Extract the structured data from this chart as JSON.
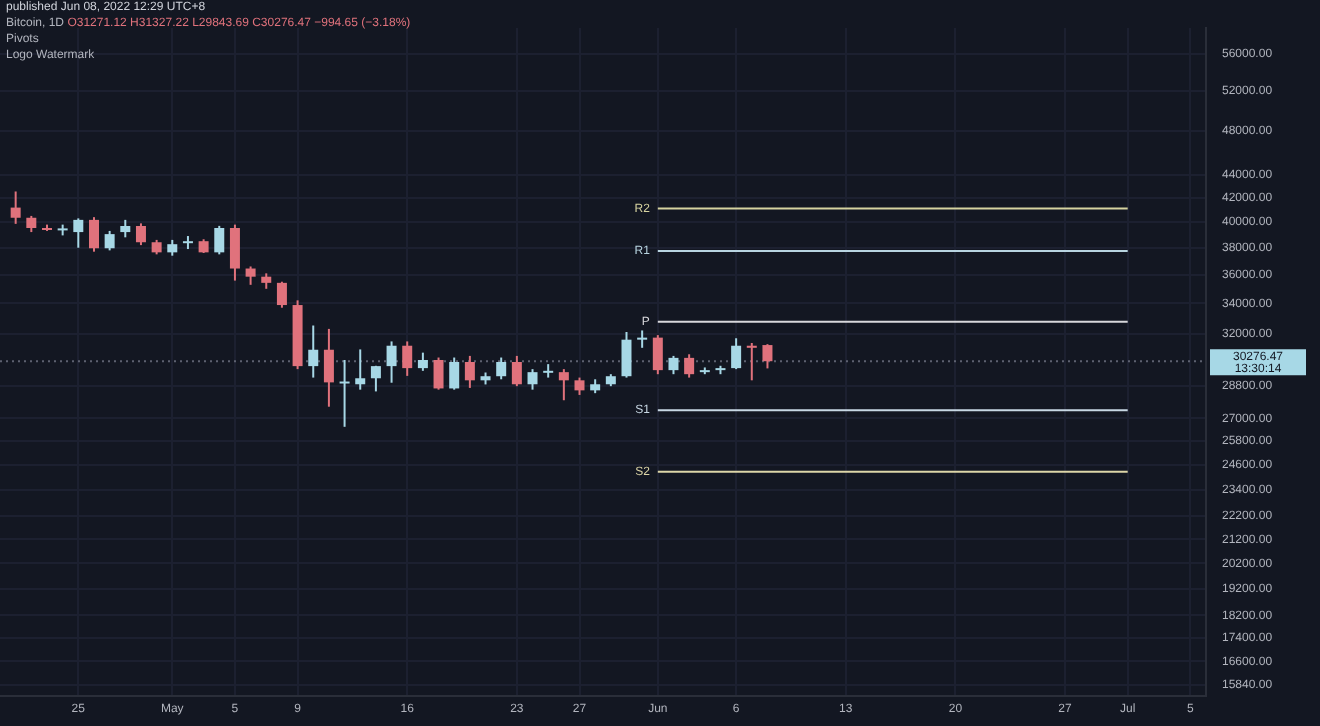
{
  "chart_data": {
    "type": "candlestick",
    "title": "Bitcoin, 1D",
    "annotations": [
      "published Jun 08, 2022 12:29 UTC+8",
      "O31271.12 H31327.22 L29843.69 C30276.47 −994.65 (−3.18%)",
      "Pivots",
      "Logo Watermark",
      "13:30:14"
    ],
    "x": [
      "2022-04-21",
      "2022-04-22",
      "2022-04-23",
      "2022-04-24",
      "2022-04-25",
      "2022-04-26",
      "2022-04-27",
      "2022-04-28",
      "2022-04-29",
      "2022-04-30",
      "2022-05-01",
      "2022-05-02",
      "2022-05-03",
      "2022-05-04",
      "2022-05-05",
      "2022-05-06",
      "2022-05-07",
      "2022-05-08",
      "2022-05-09",
      "2022-05-10",
      "2022-05-11",
      "2022-05-12",
      "2022-05-13",
      "2022-05-14",
      "2022-05-15",
      "2022-05-16",
      "2022-05-17",
      "2022-05-18",
      "2022-05-19",
      "2022-05-20",
      "2022-05-21",
      "2022-05-22",
      "2022-05-23",
      "2022-05-24",
      "2022-05-25",
      "2022-05-26",
      "2022-05-27",
      "2022-05-28",
      "2022-05-29",
      "2022-05-30",
      "2022-05-31",
      "2022-06-01",
      "2022-06-02",
      "2022-06-03",
      "2022-06-04",
      "2022-06-05",
      "2022-06-06",
      "2022-06-07",
      "2022-06-08"
    ],
    "ohlc": [
      [
        41180,
        42530,
        39860,
        40350
      ],
      [
        40350,
        40500,
        39210,
        39530
      ],
      [
        39530,
        39800,
        39300,
        39450
      ],
      [
        39450,
        39800,
        38950,
        39500
      ],
      [
        39210,
        40300,
        38000,
        40180
      ],
      [
        40180,
        40400,
        37700,
        37960
      ],
      [
        37960,
        39300,
        37800,
        39050
      ],
      [
        39210,
        40180,
        38800,
        39690
      ],
      [
        39690,
        39900,
        38200,
        38420
      ],
      [
        38420,
        38600,
        37500,
        37650
      ],
      [
        37650,
        38600,
        37400,
        38270
      ],
      [
        38420,
        38900,
        37900,
        38500
      ],
      [
        38500,
        38650,
        37600,
        37650
      ],
      [
        37650,
        39700,
        37500,
        39530
      ],
      [
        39530,
        39800,
        35580,
        36450
      ],
      [
        36450,
        36600,
        35280,
        35860
      ],
      [
        35860,
        36100,
        35000,
        35420
      ],
      [
        35420,
        35500,
        33700,
        33880
      ],
      [
        33880,
        34200,
        29800,
        29980
      ],
      [
        29980,
        32520,
        29300,
        30980
      ],
      [
        30980,
        32300,
        27640,
        29020
      ],
      [
        29020,
        30350,
        26550,
        29070
      ],
      [
        28910,
        31000,
        28600,
        29260
      ],
      [
        29260,
        30000,
        28500,
        29980
      ],
      [
        29980,
        31500,
        29000,
        31230
      ],
      [
        31230,
        31500,
        29400,
        29860
      ],
      [
        29860,
        30800,
        29700,
        30350
      ],
      [
        30350,
        30500,
        28600,
        28670
      ],
      [
        28670,
        30500,
        28600,
        30230
      ],
      [
        30230,
        30600,
        28700,
        29140
      ],
      [
        29140,
        29600,
        28900,
        29380
      ],
      [
        29380,
        30500,
        29200,
        30230
      ],
      [
        30230,
        30600,
        28800,
        28910
      ],
      [
        28910,
        29800,
        28600,
        29620
      ],
      [
        29620,
        30100,
        29300,
        29700
      ],
      [
        29620,
        29800,
        28000,
        29140
      ],
      [
        29140,
        29300,
        28300,
        28560
      ],
      [
        28560,
        29200,
        28400,
        28910
      ],
      [
        28910,
        29500,
        28800,
        29380
      ],
      [
        29380,
        32100,
        29300,
        31610
      ],
      [
        31610,
        32200,
        31100,
        31740
      ],
      [
        31740,
        31900,
        29500,
        29740
      ],
      [
        29740,
        30600,
        29500,
        30480
      ],
      [
        30480,
        30700,
        29300,
        29500
      ],
      [
        29620,
        29900,
        29500,
        29740
      ],
      [
        29740,
        30000,
        29500,
        29860
      ],
      [
        29860,
        31700,
        29800,
        31230
      ],
      [
        31230,
        31400,
        29140,
        31100
      ],
      [
        31271.12,
        31327.22,
        29843.69,
        30276.47
      ]
    ],
    "colors": [
      "#e0727c",
      "#e0727c",
      "#e0727c",
      "#a7d8e6",
      "#a7d8e6",
      "#e0727c",
      "#a7d8e6",
      "#a7d8e6",
      "#e0727c",
      "#e0727c",
      "#a7d8e6",
      "#a7d8e6",
      "#e0727c",
      "#a7d8e6",
      "#e0727c",
      "#e0727c",
      "#e0727c",
      "#e0727c",
      "#e0727c",
      "#a7d8e6",
      "#e0727c",
      "#a7d8e6",
      "#a7d8e6",
      "#a7d8e6",
      "#a7d8e6",
      "#e0727c",
      "#a7d8e6",
      "#e0727c",
      "#a7d8e6",
      "#e0727c",
      "#a7d8e6",
      "#a7d8e6",
      "#e0727c",
      "#a7d8e6",
      "#a7d8e6",
      "#e0727c",
      "#e0727c",
      "#a7d8e6",
      "#a7d8e6",
      "#a7d8e6",
      "#a7d8e6",
      "#e0727c",
      "#a7d8e6",
      "#e0727c",
      "#a7d8e6",
      "#a7d8e6",
      "#a7d8e6",
      "#e0727c",
      "#e0727c"
    ],
    "series": [
      {
        "type": "line",
        "name": "R2",
        "color": "#d6d3a0",
        "x": [
          "2022-06-01",
          "2022-07-01"
        ],
        "values": [
          41100,
          41100
        ]
      },
      {
        "type": "line",
        "name": "R1",
        "color": "#b8d4e0",
        "x": [
          "2022-06-01",
          "2022-07-01"
        ],
        "values": [
          37760,
          37760
        ]
      },
      {
        "type": "line",
        "name": "P",
        "color": "#d8d8dc",
        "x": [
          "2022-06-01",
          "2022-07-01"
        ],
        "values": [
          32770,
          32770
        ]
      },
      {
        "type": "line",
        "name": "S1",
        "color": "#c8d8e4",
        "x": [
          "2022-06-01",
          "2022-07-01"
        ],
        "values": [
          27450,
          27450
        ]
      },
      {
        "type": "line",
        "name": "S2",
        "color": "#ddd6a8",
        "x": [
          "2022-06-01",
          "2022-07-01"
        ],
        "values": [
          24260,
          24260
        ]
      }
    ],
    "ref_lines": [
      {
        "axis": "y",
        "value": 30276.47,
        "label": "30276.47",
        "color": "#5d6170",
        "line_style": "dotted"
      }
    ],
    "marker": "none",
    "log": "y",
    "grid": true,
    "legend": false,
    "xlim": [
      "2022-04-20",
      "2022-07-06"
    ],
    "xticks": [
      {
        "value": "2022-04-25",
        "label": "25"
      },
      {
        "value": "2022-05-01",
        "label": "May"
      },
      {
        "value": "2022-05-05",
        "label": "5"
      },
      {
        "value": "2022-05-09",
        "label": "9"
      },
      {
        "value": "2022-05-16",
        "label": "16"
      },
      {
        "value": "2022-05-23",
        "label": "23"
      },
      {
        "value": "2022-05-27",
        "label": "27"
      },
      {
        "value": "2022-06-01",
        "label": "Jun"
      },
      {
        "value": "2022-06-06",
        "label": "6"
      },
      {
        "value": "2022-06-13",
        "label": "13"
      },
      {
        "value": "2022-06-20",
        "label": "20"
      },
      {
        "value": "2022-06-27",
        "label": "27"
      },
      {
        "value": "2022-07-01",
        "label": "Jul"
      },
      {
        "value": "2022-07-05",
        "label": "5"
      }
    ],
    "ylim": [
      15500,
      59000
    ],
    "yticks": [
      {
        "value": 56000,
        "label": "56000.00"
      },
      {
        "value": 52000,
        "label": "52000.00"
      },
      {
        "value": 48000,
        "label": "48000.00"
      },
      {
        "value": 44000,
        "label": "44000.00"
      },
      {
        "value": 42000,
        "label": "42000.00"
      },
      {
        "value": 40000,
        "label": "40000.00"
      },
      {
        "value": 38000,
        "label": "38000.00"
      },
      {
        "value": 36000,
        "label": "36000.00"
      },
      {
        "value": 34000,
        "label": "34000.00"
      },
      {
        "value": 32000,
        "label": "32000.00"
      },
      {
        "value": 28800,
        "label": "28800.00"
      },
      {
        "value": 27000,
        "label": "27000.00"
      },
      {
        "value": 25800,
        "label": "25800.00"
      },
      {
        "value": 24600,
        "label": "24600.00"
      },
      {
        "value": 23400,
        "label": "23400.00"
      },
      {
        "value": 22200,
        "label": "22200.00"
      },
      {
        "value": 21200,
        "label": "21200.00"
      },
      {
        "value": 20200,
        "label": "20200.00"
      },
      {
        "value": 19200,
        "label": "19200.00"
      },
      {
        "value": 18200,
        "label": "18200.00"
      },
      {
        "value": 17400,
        "label": "17400.00"
      },
      {
        "value": 16600,
        "label": "16600.00"
      },
      {
        "value": 15840,
        "label": "15840.00"
      }
    ]
  }
}
